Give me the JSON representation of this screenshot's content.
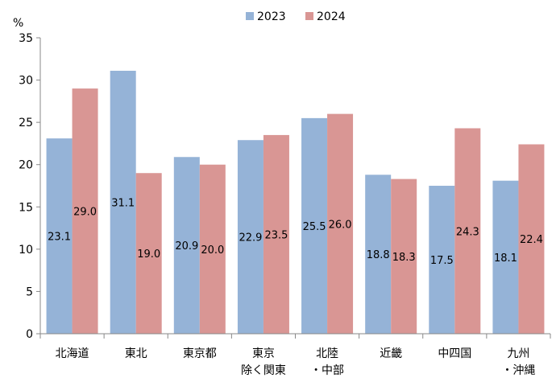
{
  "chart_data": {
    "type": "bar",
    "unit": "%",
    "categories": [
      [
        "北海道"
      ],
      [
        "東北"
      ],
      [
        "東京都"
      ],
      [
        "東京",
        "除く関東"
      ],
      [
        "北陸",
        "・中部"
      ],
      [
        "近畿"
      ],
      [
        "中四国"
      ],
      [
        "九州",
        "・沖縄"
      ]
    ],
    "series": [
      {
        "name": "2023",
        "color": "#95b3d7",
        "values": [
          23.1,
          31.1,
          20.9,
          22.9,
          25.5,
          18.8,
          17.5,
          18.1
        ],
        "labels": [
          "23.1",
          "31.1",
          "20.9",
          "22.9",
          "25.5",
          "18.8",
          "17.5",
          "18.1"
        ]
      },
      {
        "name": "2024",
        "color": "#d99694",
        "values": [
          29.0,
          19.0,
          20.0,
          23.5,
          26.0,
          18.3,
          24.3,
          22.4
        ],
        "labels": [
          "29.0",
          "19.0",
          "20.0",
          "23.5",
          "26.0",
          "18.3",
          "24.3",
          "22.4"
        ]
      }
    ],
    "ylim": [
      0,
      35
    ],
    "yticks": [
      0,
      5,
      10,
      15,
      20,
      25,
      30,
      35
    ],
    "grid": false,
    "legend_position": "top-center"
  }
}
